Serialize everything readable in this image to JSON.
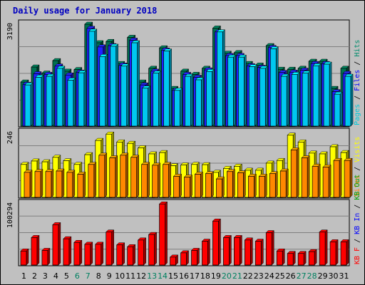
{
  "chart_data": [
    {
      "type": "bar",
      "title": "Daily usage for January 2018",
      "days": [
        "1",
        "2",
        "3",
        "4",
        "5",
        "6",
        "7",
        "8",
        "9",
        "10",
        "11",
        "12",
        "13",
        "14",
        "15",
        "16",
        "17",
        "18",
        "19",
        "20",
        "21",
        "22",
        "23",
        "24",
        "25",
        "26",
        "27",
        "28",
        "29",
        "30",
        "31"
      ],
      "weekend_days": [
        "6",
        "7",
        "13",
        "14",
        "20",
        "21",
        "27",
        "28"
      ],
      "right_labels": [
        {
          "text": "Pages",
          "color": "#00c8d8"
        },
        {
          "text": " / ",
          "color": "#000000"
        },
        {
          "text": "Files",
          "color": "#0000ff"
        },
        {
          "text": " / ",
          "color": "#000000"
        },
        {
          "text": "Hits",
          "color": "#008c6c"
        }
      ],
      "ymax_label": "3190",
      "ymax": 3190,
      "series": [
        {
          "name": "Hits",
          "color": "#007050",
          "values": [
            1380,
            1850,
            1660,
            2050,
            1720,
            1770,
            3190,
            2610,
            2650,
            1960,
            2780,
            1380,
            1810,
            2450,
            1180,
            1720,
            1620,
            1810,
            3070,
            2280,
            2300,
            1960,
            1910,
            2520,
            1780,
            1780,
            1810,
            2030,
            2030,
            1180,
            1810
          ]
        },
        {
          "name": "Files",
          "color": "#2020ff",
          "values": [
            1310,
            1640,
            1620,
            1880,
            1600,
            1690,
            3060,
            2480,
            2520,
            1910,
            2690,
            1290,
            1720,
            2380,
            1120,
            1620,
            1530,
            1760,
            2950,
            2210,
            2210,
            1890,
            1840,
            2460,
            1680,
            1690,
            1750,
            1960,
            1960,
            1080,
            1650
          ]
        },
        {
          "name": "Pages",
          "color": "#00c8f0",
          "values": [
            1290,
            1530,
            1560,
            1810,
            1440,
            1670,
            2970,
            2180,
            2500,
            1880,
            2610,
            1190,
            1660,
            2350,
            1120,
            1560,
            1450,
            1710,
            2950,
            2160,
            2160,
            1860,
            1810,
            2420,
            1560,
            1620,
            1660,
            1890,
            1940,
            1000,
            1560
          ]
        }
      ]
    },
    {
      "type": "bar",
      "right_labels": [
        {
          "text": "Sites",
          "color": "#ff8000"
        },
        {
          "text": " / ",
          "color": "#000000"
        },
        {
          "text": "Visits",
          "color": "#ffff00"
        }
      ],
      "ymax_label": "246",
      "ymax": 246,
      "series": [
        {
          "name": "Visits",
          "color": "#ffff00",
          "values": [
            125,
            138,
            135,
            152,
            139,
            125,
            162,
            216,
            240,
            210,
            205,
            188,
            165,
            170,
            120,
            123,
            125,
            124,
            95,
            110,
            118,
            103,
            103,
            130,
            140,
            236,
            210,
            168,
            165,
            192,
            170
          ]
        },
        {
          "name": "Sites",
          "color": "#ff8800",
          "values": [
            95,
            98,
            98,
            100,
            95,
            88,
            125,
            160,
            150,
            160,
            152,
            125,
            122,
            125,
            80,
            77,
            88,
            90,
            70,
            98,
            93,
            80,
            80,
            90,
            100,
            180,
            150,
            118,
            115,
            140,
            140
          ]
        }
      ]
    },
    {
      "type": "bar",
      "right_labels": [
        {
          "text": "KB F",
          "color": "#ff0000"
        },
        {
          "text": " / ",
          "color": "#000000"
        },
        {
          "text": "KB In",
          "color": "#0000ff"
        },
        {
          "text": " / ",
          "color": "#000000"
        },
        {
          "text": "KB Out",
          "color": "#00a000"
        }
      ],
      "ymax_label": "100294",
      "ymax": 100294,
      "series": [
        {
          "name": "KB F",
          "color": "#ff0000",
          "values": [
            23000,
            45000,
            24000,
            66000,
            43000,
            37000,
            34000,
            34000,
            54000,
            33000,
            30000,
            41000,
            50000,
            100000,
            13000,
            20000,
            24000,
            39000,
            72000,
            45000,
            45000,
            41000,
            39000,
            53000,
            23000,
            19000,
            19000,
            22000,
            54000,
            38000,
            38000
          ]
        }
      ]
    }
  ]
}
